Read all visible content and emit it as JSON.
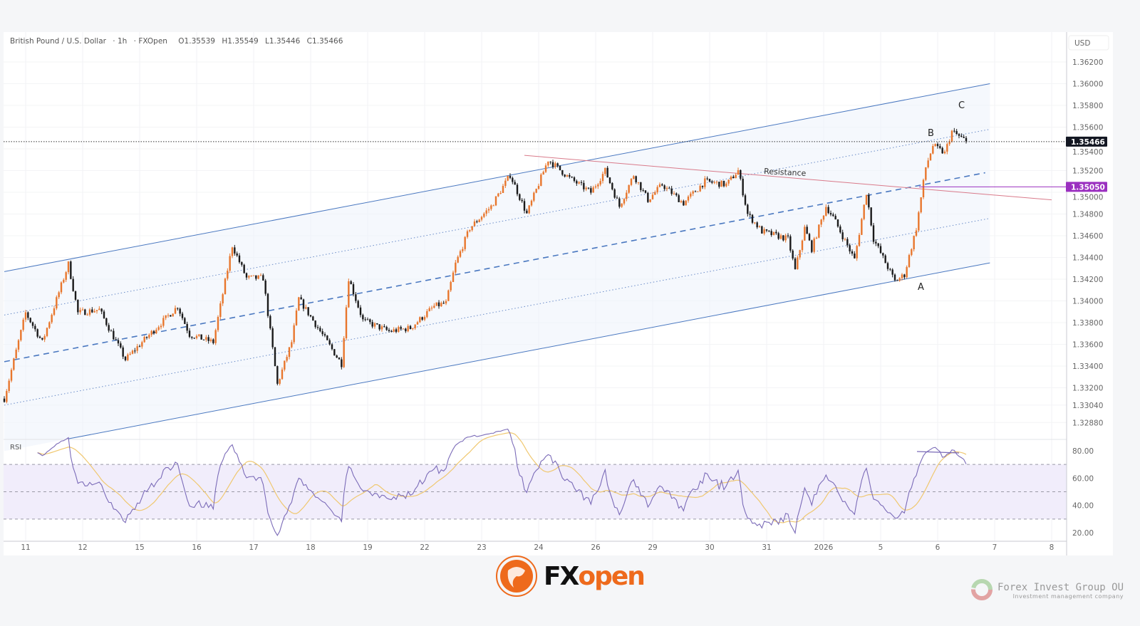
{
  "header": {
    "symbol": "British Pound / U.S. Dollar",
    "interval": "1h",
    "source": "FXOpen",
    "open": "O1.35539",
    "high": "H1.35549",
    "low": "L1.35446",
    "close": "C1.35466"
  },
  "chart_data": {
    "type": "candlestick",
    "currency_label": "USD",
    "x_ticks": [
      "11",
      "12",
      "15",
      "16",
      "17",
      "18",
      "19",
      "22",
      "23",
      "24",
      "26",
      "29",
      "30",
      "31",
      "2026",
      "5",
      "6",
      "7",
      "8"
    ],
    "y_ticks": [
      "1.36200",
      "1.36000",
      "1.35800",
      "1.35600",
      "1.35400",
      "1.35200",
      "1.35000",
      "1.34800",
      "1.34600",
      "1.34400",
      "1.34200",
      "1.34000",
      "1.33800",
      "1.33600",
      "1.33400",
      "1.33200",
      "1.33040",
      "1.32880"
    ],
    "ylim": [
      1.328,
      1.3632
    ],
    "last_price": "1.35466",
    "marked_level": "1.35050",
    "colors": {
      "up": "#e8762c",
      "down": "#1a1a1a",
      "channel": "#4a78c0",
      "resistance": "#d97a8a",
      "level": "#9b30c0",
      "rsi": "#7b6bb8",
      "rsi_ma": "#f0c870"
    },
    "price_path_keypoints": [
      [
        "11",
        -9,
        1.331
      ],
      [
        "11",
        0,
        1.3389
      ],
      [
        "11",
        7,
        1.3362
      ],
      [
        "11",
        18,
        1.3434
      ],
      [
        "11",
        22,
        1.3389
      ],
      [
        "12",
        7,
        1.3392
      ],
      [
        "12",
        18,
        1.3346
      ],
      [
        "15",
        1,
        1.3362
      ],
      [
        "15",
        16,
        1.3395
      ],
      [
        "15",
        21,
        1.3369
      ],
      [
        "16",
        7,
        1.3362
      ],
      [
        "16",
        15,
        1.3451
      ],
      [
        "16",
        21,
        1.3421
      ],
      [
        "17",
        4,
        1.3421
      ],
      [
        "17",
        10,
        1.3323
      ],
      [
        "17",
        16,
        1.3362
      ],
      [
        "17",
        19,
        1.3402
      ],
      [
        "18",
        4,
        1.3372
      ],
      [
        "18",
        13,
        1.3342
      ],
      [
        "18",
        16,
        1.3421
      ],
      [
        "18",
        22,
        1.3382
      ],
      [
        "19",
        9,
        1.3372
      ],
      [
        "19",
        18,
        1.3375
      ],
      [
        "22",
        4,
        1.3395
      ],
      [
        "22",
        9,
        1.3398
      ],
      [
        "22",
        13,
        1.3434
      ],
      [
        "22",
        19,
        1.3467
      ],
      [
        "23",
        4,
        1.3487
      ],
      [
        "23",
        12,
        1.3516
      ],
      [
        "23",
        19,
        1.348
      ],
      [
        "24",
        4,
        1.353
      ],
      [
        "24",
        13,
        1.3513
      ],
      [
        "24",
        22,
        1.35
      ],
      [
        "26",
        4,
        1.352
      ],
      [
        "26",
        10,
        1.3487
      ],
      [
        "26",
        16,
        1.3516
      ],
      [
        "26",
        22,
        1.3493
      ],
      [
        "29",
        4,
        1.3507
      ],
      [
        "29",
        13,
        1.349
      ],
      [
        "29",
        22,
        1.351
      ],
      [
        "30",
        7,
        1.3507
      ],
      [
        "30",
        12,
        1.352
      ],
      [
        "30",
        16,
        1.348
      ],
      [
        "30",
        22,
        1.3464
      ],
      [
        "31",
        9,
        1.3457
      ],
      [
        "31",
        12,
        1.3428
      ],
      [
        "31",
        16,
        1.3467
      ],
      [
        "31",
        19,
        1.3448
      ],
      [
        "2026",
        1,
        1.3487
      ],
      [
        "2026",
        4,
        1.3477
      ],
      [
        "2026",
        13,
        1.3438
      ],
      [
        "2026",
        18,
        1.35
      ],
      [
        "2026",
        21,
        1.3457
      ],
      [
        "5",
        6,
        1.3418
      ],
      [
        "5",
        10,
        1.3424
      ],
      [
        "5",
        15,
        1.3467
      ],
      [
        "5",
        19,
        1.3523
      ],
      [
        "5",
        22,
        1.3543
      ],
      [
        "6",
        3,
        1.3536
      ],
      [
        "6",
        6,
        1.3556
      ],
      [
        "6",
        12,
        1.3547
      ]
    ],
    "trend_lines": [
      {
        "name": "channel-upper",
        "style": "solid",
        "from": [
          "11",
          -9,
          1.3427
        ],
        "to": [
          "6",
          22,
          1.36
        ]
      },
      {
        "name": "channel-inner-upper",
        "style": "dotted",
        "from": [
          "11",
          -9,
          1.3387
        ],
        "to": [
          "6",
          22,
          1.3558
        ]
      },
      {
        "name": "channel-median",
        "style": "dashed",
        "from": [
          "11",
          -9,
          1.3344
        ],
        "to": [
          "6",
          20,
          1.3518
        ]
      },
      {
        "name": "channel-inner-lower",
        "style": "dotted",
        "from": [
          "11",
          -9,
          1.3304
        ],
        "to": [
          "6",
          22,
          1.3476
        ]
      },
      {
        "name": "channel-lower",
        "style": "solid",
        "from": [
          "11",
          18,
          1.3273
        ],
        "to": [
          "6",
          22,
          1.3435
        ]
      },
      {
        "name": "resistance",
        "style": "solid",
        "from": [
          "23",
          18,
          1.3534
        ],
        "to": [
          "7",
          24,
          1.3493
        ]
      }
    ],
    "annotations": {
      "resistance_label": "Resistance",
      "point_a": "A",
      "point_b": "B",
      "point_c": "C"
    },
    "rsi": {
      "label": "RSI",
      "y_ticks": [
        "80.00",
        "60.00",
        "40.00",
        "20.00"
      ],
      "levels": [
        70,
        50,
        30
      ]
    }
  },
  "branding": {
    "logo_fx": "FX",
    "logo_open": "open",
    "watermark": "Forex Invest Group OU",
    "watermark_sub": "Investment management company"
  }
}
